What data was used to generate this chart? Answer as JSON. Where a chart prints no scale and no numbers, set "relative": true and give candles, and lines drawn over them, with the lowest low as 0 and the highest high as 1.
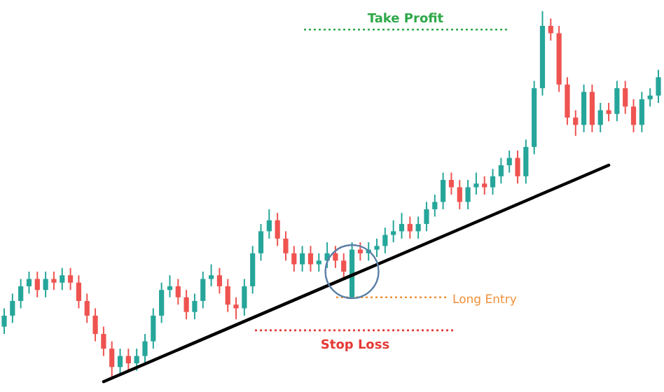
{
  "chart_data": {
    "type": "candlestick",
    "relative": true,
    "categories": [
      null,
      null,
      null,
      null,
      null,
      null,
      null,
      null,
      null,
      null,
      null,
      null,
      null,
      null,
      null,
      null,
      null,
      null,
      null,
      null,
      null,
      null,
      null,
      null,
      null,
      null,
      null,
      null,
      null,
      null,
      null,
      null,
      null,
      null,
      null,
      null,
      null,
      null,
      null,
      null,
      null,
      null,
      null,
      null,
      null,
      null,
      null,
      null,
      null,
      null,
      null,
      null,
      null,
      null,
      null,
      null,
      null,
      null,
      null,
      null,
      null,
      null,
      null,
      null,
      null,
      null,
      null,
      null,
      null,
      null,
      null,
      null,
      null,
      null,
      null,
      null,
      null,
      null,
      null,
      null
    ],
    "ohlc": [
      [
        0.14,
        0.19,
        0.12,
        0.17
      ],
      [
        0.17,
        0.23,
        0.15,
        0.21
      ],
      [
        0.21,
        0.27,
        0.19,
        0.25
      ],
      [
        0.25,
        0.29,
        0.23,
        0.27
      ],
      [
        0.27,
        0.29,
        0.22,
        0.24
      ],
      [
        0.24,
        0.29,
        0.22,
        0.27
      ],
      [
        0.27,
        0.29,
        0.24,
        0.26
      ],
      [
        0.26,
        0.3,
        0.24,
        0.28
      ],
      [
        0.28,
        0.3,
        0.24,
        0.26
      ],
      [
        0.26,
        0.28,
        0.19,
        0.21
      ],
      [
        0.21,
        0.23,
        0.15,
        0.17
      ],
      [
        0.17,
        0.19,
        0.1,
        0.12
      ],
      [
        0.12,
        0.14,
        0.06,
        0.08
      ],
      [
        0.08,
        0.1,
        0.0,
        0.03
      ],
      [
        0.03,
        0.08,
        0.01,
        0.06
      ],
      [
        0.06,
        0.08,
        0.02,
        0.04
      ],
      [
        0.04,
        0.08,
        0.02,
        0.06
      ],
      [
        0.06,
        0.12,
        0.04,
        0.1
      ],
      [
        0.1,
        0.19,
        0.08,
        0.17
      ],
      [
        0.17,
        0.26,
        0.15,
        0.24
      ],
      [
        0.24,
        0.28,
        0.22,
        0.25
      ],
      [
        0.25,
        0.27,
        0.2,
        0.22
      ],
      [
        0.22,
        0.24,
        0.16,
        0.18
      ],
      [
        0.18,
        0.23,
        0.16,
        0.21
      ],
      [
        0.21,
        0.29,
        0.19,
        0.27
      ],
      [
        0.27,
        0.31,
        0.25,
        0.28
      ],
      [
        0.28,
        0.3,
        0.23,
        0.25
      ],
      [
        0.25,
        0.27,
        0.18,
        0.2
      ],
      [
        0.2,
        0.22,
        0.16,
        0.19
      ],
      [
        0.19,
        0.27,
        0.17,
        0.25
      ],
      [
        0.25,
        0.36,
        0.23,
        0.34
      ],
      [
        0.34,
        0.42,
        0.32,
        0.4
      ],
      [
        0.4,
        0.46,
        0.38,
        0.43
      ],
      [
        0.43,
        0.45,
        0.36,
        0.38
      ],
      [
        0.38,
        0.4,
        0.32,
        0.34
      ],
      [
        0.34,
        0.36,
        0.29,
        0.31
      ],
      [
        0.31,
        0.36,
        0.29,
        0.34
      ],
      [
        0.34,
        0.36,
        0.29,
        0.31
      ],
      [
        0.31,
        0.34,
        0.29,
        0.32
      ],
      [
        0.32,
        0.37,
        0.3,
        0.34
      ],
      [
        0.34,
        0.36,
        0.3,
        0.32
      ],
      [
        0.32,
        0.34,
        0.27,
        0.29
      ],
      [
        0.22,
        0.37,
        0.22,
        0.35
      ],
      [
        0.35,
        0.37,
        0.32,
        0.34
      ],
      [
        0.34,
        0.37,
        0.32,
        0.35
      ],
      [
        0.35,
        0.38,
        0.33,
        0.36
      ],
      [
        0.36,
        0.41,
        0.34,
        0.39
      ],
      [
        0.39,
        0.43,
        0.37,
        0.4
      ],
      [
        0.4,
        0.45,
        0.38,
        0.42
      ],
      [
        0.42,
        0.44,
        0.38,
        0.4
      ],
      [
        0.4,
        0.44,
        0.38,
        0.42
      ],
      [
        0.42,
        0.48,
        0.4,
        0.46
      ],
      [
        0.46,
        0.5,
        0.44,
        0.48
      ],
      [
        0.48,
        0.56,
        0.46,
        0.54
      ],
      [
        0.54,
        0.56,
        0.5,
        0.52
      ],
      [
        0.52,
        0.54,
        0.46,
        0.48
      ],
      [
        0.48,
        0.54,
        0.46,
        0.52
      ],
      [
        0.52,
        0.56,
        0.5,
        0.53
      ],
      [
        0.53,
        0.55,
        0.5,
        0.52
      ],
      [
        0.52,
        0.57,
        0.5,
        0.55
      ],
      [
        0.55,
        0.6,
        0.53,
        0.58
      ],
      [
        0.58,
        0.62,
        0.56,
        0.6
      ],
      [
        0.6,
        0.62,
        0.53,
        0.55
      ],
      [
        0.55,
        0.65,
        0.53,
        0.63
      ],
      [
        0.63,
        0.81,
        0.61,
        0.79
      ],
      [
        0.79,
        1.0,
        0.77,
        0.96
      ],
      [
        0.96,
        0.98,
        0.92,
        0.94
      ],
      [
        0.94,
        0.96,
        0.78,
        0.8
      ],
      [
        0.8,
        0.82,
        0.69,
        0.71
      ],
      [
        0.71,
        0.73,
        0.66,
        0.69
      ],
      [
        0.69,
        0.8,
        0.67,
        0.78
      ],
      [
        0.78,
        0.8,
        0.67,
        0.69
      ],
      [
        0.69,
        0.75,
        0.67,
        0.73
      ],
      [
        0.73,
        0.75,
        0.7,
        0.72
      ],
      [
        0.72,
        0.81,
        0.7,
        0.79
      ],
      [
        0.79,
        0.81,
        0.72,
        0.74
      ],
      [
        0.74,
        0.76,
        0.67,
        0.69
      ],
      [
        0.69,
        0.78,
        0.67,
        0.76
      ],
      [
        0.76,
        0.79,
        0.74,
        0.77
      ],
      [
        0.77,
        0.84,
        0.75,
        0.82
      ]
    ],
    "series": [
      {
        "type": "line",
        "values": [
          null,
          null,
          null,
          null,
          null,
          null,
          null,
          null,
          null,
          null,
          null,
          null,
          -0.01,
          null,
          null,
          null,
          null,
          null,
          null,
          null,
          null,
          null,
          null,
          null,
          null,
          null,
          null,
          null,
          null,
          null,
          null,
          null,
          null,
          null,
          null,
          null,
          null,
          null,
          null,
          null,
          null,
          null,
          null,
          null,
          null,
          null,
          null,
          null,
          null,
          null,
          null,
          null,
          null,
          null,
          null,
          null,
          null,
          null,
          null,
          null,
          null,
          null,
          null,
          null,
          null,
          null,
          null,
          null,
          null,
          null,
          null,
          null,
          null,
          0.58,
          null,
          null,
          null,
          null,
          null,
          null
        ],
        "color": "#000000"
      }
    ],
    "ref_lines": [
      {
        "axis": "y",
        "value": 0.95,
        "label": "Take Profit",
        "color": "#2ea84a",
        "line_style": "dotted"
      },
      {
        "axis": "y",
        "value": 0.22,
        "label": "Long Entry",
        "color": "#f0913a",
        "line_style": "dotted"
      },
      {
        "axis": "y",
        "value": 0.13,
        "label": "Stop Loss",
        "color": "#e53935",
        "line_style": "dotted"
      }
    ]
  }
}
